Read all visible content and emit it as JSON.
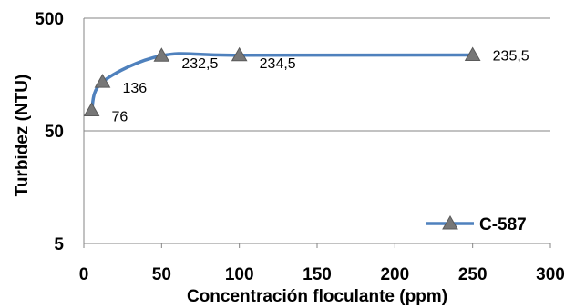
{
  "chart_data": {
    "type": "line",
    "title": "",
    "xlabel": "Concentración floculante (ppm)",
    "ylabel": "Turbidez (NTU)",
    "xlim": [
      0,
      300
    ],
    "ylim": [
      5,
      500
    ],
    "y_scale": "log",
    "x_ticks": [
      "0",
      "50",
      "100",
      "150",
      "200",
      "250",
      "300"
    ],
    "y_ticks": [
      "5",
      "50",
      "500"
    ],
    "grid": "horizontal",
    "legend_position": "bottom-right",
    "series": [
      {
        "name": "C-587",
        "color": "#4F81BD",
        "marker": "triangle",
        "marker_color": "#777777",
        "smooth": true,
        "x": [
          5,
          12,
          50,
          100,
          250
        ],
        "y": [
          76,
          136,
          232.5,
          234.5,
          235.5
        ],
        "labels": [
          "76",
          "136",
          "232,5",
          "234,5",
          "235,5"
        ]
      }
    ]
  }
}
